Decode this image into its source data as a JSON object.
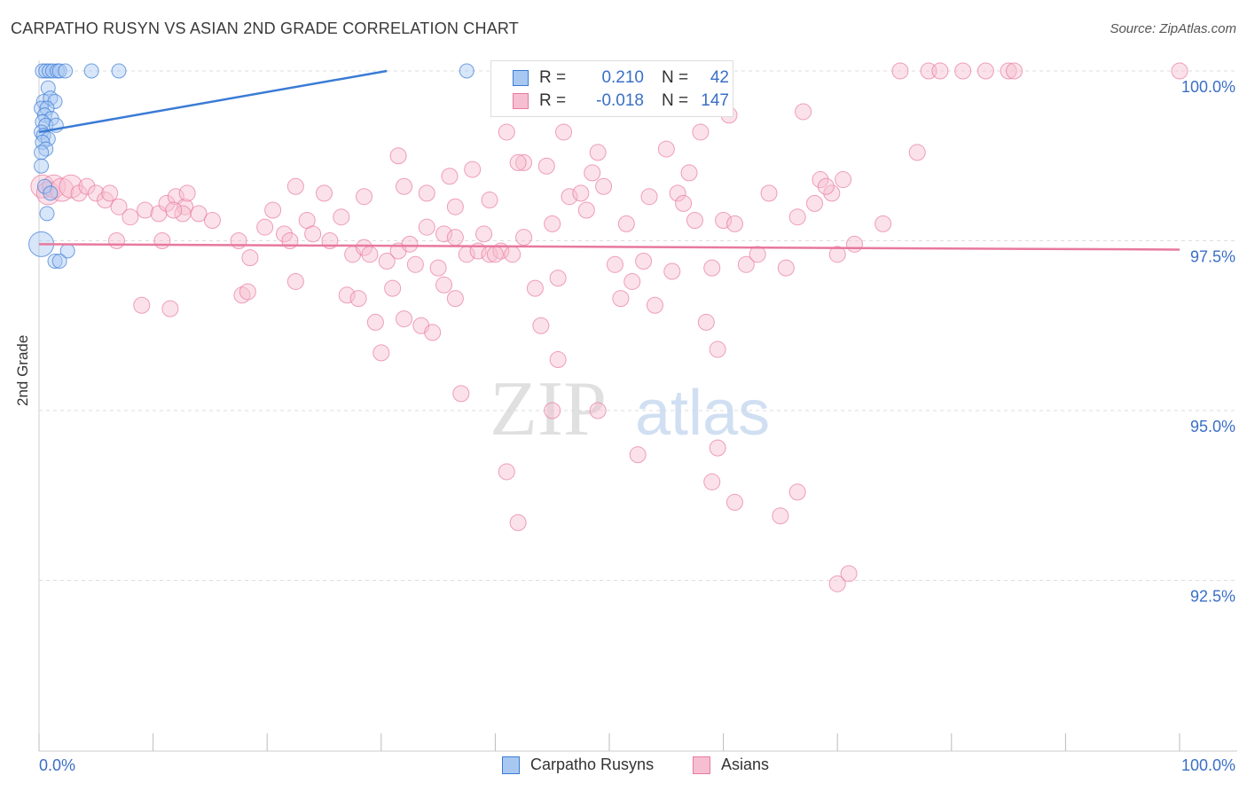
{
  "title": "CARPATHO RUSYN VS ASIAN 2ND GRADE CORRELATION CHART",
  "source": "Source: ZipAtlas.com",
  "watermark": {
    "zip": "ZIP",
    "atlas": "atlas"
  },
  "colors": {
    "blue": "#3a7bd5",
    "blue_fill": "#a9c8f1",
    "pink": "#e8799e",
    "pink_fill": "#f6bfd1",
    "grid": "#dddddd",
    "tick_text": "#3a6fc7"
  },
  "legend_top": {
    "rows": [
      {
        "r_label": "R =",
        "r_value": "0.210",
        "n_label": "N =",
        "n_value": "42"
      },
      {
        "r_label": "R =",
        "r_value": "-0.018",
        "n_label": "N =",
        "n_value": "147"
      }
    ]
  },
  "legend_bottom": [
    "Carpatho Rusyns",
    "Asians"
  ],
  "chart_data": {
    "type": "scatter",
    "title": "CARPATHO RUSYN VS ASIAN 2ND GRADE CORRELATION CHART",
    "xlabel": "",
    "ylabel": "2nd Grade",
    "xlim": [
      0,
      100
    ],
    "ylim": [
      90.2,
      100.4
    ],
    "x_tick_labels": [
      "0.0%",
      "100.0%"
    ],
    "y_ticks": [
      100.0,
      97.5,
      95.0,
      92.5
    ],
    "y_tick_labels": [
      "100.0%",
      "97.5%",
      "95.0%",
      "92.5%"
    ],
    "series": [
      {
        "name": "Carpatho Rusyns",
        "r": 0.21,
        "n": 42,
        "trend": {
          "x": [
            0,
            30.5
          ],
          "y": [
            99.1,
            100.0
          ]
        },
        "points": [
          {
            "x": 0.3,
            "y": 100.0
          },
          {
            "x": 0.6,
            "y": 100.0
          },
          {
            "x": 0.9,
            "y": 100.0
          },
          {
            "x": 1.2,
            "y": 100.0
          },
          {
            "x": 1.6,
            "y": 100.0
          },
          {
            "x": 1.8,
            "y": 100.0
          },
          {
            "x": 2.3,
            "y": 100.0
          },
          {
            "x": 4.6,
            "y": 100.0
          },
          {
            "x": 7.0,
            "y": 100.0
          },
          {
            "x": 37.5,
            "y": 100.0
          },
          {
            "x": 0.8,
            "y": 99.75
          },
          {
            "x": 0.4,
            "y": 99.55
          },
          {
            "x": 1.0,
            "y": 99.6
          },
          {
            "x": 1.4,
            "y": 99.55
          },
          {
            "x": 0.2,
            "y": 99.45
          },
          {
            "x": 0.7,
            "y": 99.45
          },
          {
            "x": 0.5,
            "y": 99.35
          },
          {
            "x": 1.1,
            "y": 99.3
          },
          {
            "x": 0.3,
            "y": 99.25
          },
          {
            "x": 0.6,
            "y": 99.2
          },
          {
            "x": 1.5,
            "y": 99.2
          },
          {
            "x": 0.2,
            "y": 99.1
          },
          {
            "x": 0.4,
            "y": 99.05
          },
          {
            "x": 0.8,
            "y": 99.0
          },
          {
            "x": 0.3,
            "y": 98.95
          },
          {
            "x": 0.6,
            "y": 98.85
          },
          {
            "x": 0.2,
            "y": 98.8
          },
          {
            "x": 0.2,
            "y": 98.6
          },
          {
            "x": 0.5,
            "y": 98.3
          },
          {
            "x": 1.0,
            "y": 98.2
          },
          {
            "x": 0.7,
            "y": 97.9
          },
          {
            "x": 0.2,
            "y": 97.45,
            "size": "large"
          },
          {
            "x": 2.5,
            "y": 97.35
          },
          {
            "x": 1.4,
            "y": 97.2
          },
          {
            "x": 1.8,
            "y": 97.2
          }
        ]
      },
      {
        "name": "Asians",
        "r": -0.018,
        "n": 147,
        "trend": {
          "x": [
            0,
            100
          ],
          "y": [
            97.45,
            97.37
          ]
        },
        "points": [
          {
            "x": 0.3,
            "y": 98.3,
            "size": "large"
          },
          {
            "x": 0.8,
            "y": 98.2,
            "size": "large"
          },
          {
            "x": 1.3,
            "y": 98.3,
            "size": "large"
          },
          {
            "x": 2.0,
            "y": 98.25,
            "size": "large"
          },
          {
            "x": 2.8,
            "y": 98.3,
            "size": "large"
          },
          {
            "x": 3.5,
            "y": 98.2
          },
          {
            "x": 4.2,
            "y": 98.3
          },
          {
            "x": 5.0,
            "y": 98.2
          },
          {
            "x": 5.8,
            "y": 98.1
          },
          {
            "x": 6.2,
            "y": 98.2
          },
          {
            "x": 7.0,
            "y": 98.0
          },
          {
            "x": 8.0,
            "y": 97.85
          },
          {
            "x": 9.3,
            "y": 97.95
          },
          {
            "x": 10.5,
            "y": 97.9
          },
          {
            "x": 11.2,
            "y": 98.05
          },
          {
            "x": 12.0,
            "y": 98.15
          },
          {
            "x": 12.8,
            "y": 98.0
          },
          {
            "x": 14.0,
            "y": 97.9
          },
          {
            "x": 15.2,
            "y": 97.8
          },
          {
            "x": 13.0,
            "y": 98.2
          },
          {
            "x": 6.8,
            "y": 97.5
          },
          {
            "x": 10.8,
            "y": 97.5
          },
          {
            "x": 12.6,
            "y": 97.9
          },
          {
            "x": 11.8,
            "y": 97.95
          },
          {
            "x": 17.5,
            "y": 97.5
          },
          {
            "x": 18.5,
            "y": 97.25
          },
          {
            "x": 19.8,
            "y": 97.7
          },
          {
            "x": 20.5,
            "y": 97.95
          },
          {
            "x": 21.5,
            "y": 97.6
          },
          {
            "x": 22.0,
            "y": 97.5
          },
          {
            "x": 23.5,
            "y": 97.8
          },
          {
            "x": 24.0,
            "y": 97.6
          },
          {
            "x": 25.5,
            "y": 97.5
          },
          {
            "x": 26.5,
            "y": 97.85
          },
          {
            "x": 27.5,
            "y": 97.3
          },
          {
            "x": 28.5,
            "y": 97.4
          },
          {
            "x": 29.0,
            "y": 97.3
          },
          {
            "x": 30.5,
            "y": 97.2
          },
          {
            "x": 31.5,
            "y": 97.35
          },
          {
            "x": 32.5,
            "y": 97.45
          },
          {
            "x": 33.0,
            "y": 97.15
          },
          {
            "x": 34.0,
            "y": 97.7
          },
          {
            "x": 35.0,
            "y": 97.1
          },
          {
            "x": 35.5,
            "y": 97.6
          },
          {
            "x": 36.5,
            "y": 97.55
          },
          {
            "x": 37.5,
            "y": 97.3
          },
          {
            "x": 38.5,
            "y": 97.35
          },
          {
            "x": 39.5,
            "y": 97.3
          },
          {
            "x": 40.5,
            "y": 97.35
          },
          {
            "x": 41.5,
            "y": 97.3
          },
          {
            "x": 9.0,
            "y": 96.55
          },
          {
            "x": 11.5,
            "y": 96.5
          },
          {
            "x": 17.8,
            "y": 96.7
          },
          {
            "x": 18.3,
            "y": 96.75
          },
          {
            "x": 22.5,
            "y": 96.9
          },
          {
            "x": 27.0,
            "y": 96.7
          },
          {
            "x": 28.0,
            "y": 96.65
          },
          {
            "x": 29.5,
            "y": 96.3
          },
          {
            "x": 30.0,
            "y": 95.85
          },
          {
            "x": 31.0,
            "y": 96.8
          },
          {
            "x": 32.0,
            "y": 96.35
          },
          {
            "x": 33.5,
            "y": 96.25
          },
          {
            "x": 34.5,
            "y": 96.15
          },
          {
            "x": 35.5,
            "y": 96.85
          },
          {
            "x": 36.5,
            "y": 96.65
          },
          {
            "x": 40.0,
            "y": 97.3
          },
          {
            "x": 42.5,
            "y": 97.55
          },
          {
            "x": 43.5,
            "y": 96.8
          },
          {
            "x": 44.0,
            "y": 96.25
          },
          {
            "x": 45.5,
            "y": 96.95
          },
          {
            "x": 46.5,
            "y": 98.15
          },
          {
            "x": 47.5,
            "y": 98.2
          },
          {
            "x": 48.5,
            "y": 98.5
          },
          {
            "x": 49.0,
            "y": 98.8
          },
          {
            "x": 50.5,
            "y": 97.15
          },
          {
            "x": 51.0,
            "y": 96.65
          },
          {
            "x": 52.0,
            "y": 96.9
          },
          {
            "x": 53.0,
            "y": 97.2
          },
          {
            "x": 54.0,
            "y": 96.55
          },
          {
            "x": 55.5,
            "y": 97.05
          },
          {
            "x": 56.0,
            "y": 98.2
          },
          {
            "x": 57.0,
            "y": 98.5
          },
          {
            "x": 58.5,
            "y": 96.3
          },
          {
            "x": 59.0,
            "y": 97.1
          },
          {
            "x": 60.0,
            "y": 97.8
          },
          {
            "x": 61.0,
            "y": 97.75
          },
          {
            "x": 62.0,
            "y": 97.15
          },
          {
            "x": 63.0,
            "y": 97.3
          },
          {
            "x": 64.0,
            "y": 98.2
          },
          {
            "x": 65.5,
            "y": 97.1
          },
          {
            "x": 66.5,
            "y": 97.85
          },
          {
            "x": 68.0,
            "y": 98.05
          },
          {
            "x": 69.5,
            "y": 98.2
          },
          {
            "x": 70.0,
            "y": 97.3
          },
          {
            "x": 71.5,
            "y": 97.45
          },
          {
            "x": 22.5,
            "y": 98.3
          },
          {
            "x": 25.0,
            "y": 98.2
          },
          {
            "x": 28.5,
            "y": 98.15
          },
          {
            "x": 31.5,
            "y": 98.75
          },
          {
            "x": 32.0,
            "y": 98.3
          },
          {
            "x": 34.0,
            "y": 98.2
          },
          {
            "x": 36.0,
            "y": 98.45
          },
          {
            "x": 38.0,
            "y": 98.55
          },
          {
            "x": 39.5,
            "y": 98.1
          },
          {
            "x": 41.0,
            "y": 99.1
          },
          {
            "x": 42.5,
            "y": 98.65
          },
          {
            "x": 44.5,
            "y": 98.6
          },
          {
            "x": 46.0,
            "y": 99.1
          },
          {
            "x": 49.5,
            "y": 98.3
          },
          {
            "x": 51.5,
            "y": 97.75
          },
          {
            "x": 53.5,
            "y": 98.15
          },
          {
            "x": 55.0,
            "y": 98.85
          },
          {
            "x": 56.5,
            "y": 98.05
          },
          {
            "x": 57.5,
            "y": 97.8
          },
          {
            "x": 58.0,
            "y": 99.1
          },
          {
            "x": 36.5,
            "y": 98.0
          },
          {
            "x": 39.0,
            "y": 97.6
          },
          {
            "x": 42.0,
            "y": 98.65
          },
          {
            "x": 45.0,
            "y": 97.75
          },
          {
            "x": 48.0,
            "y": 97.95
          },
          {
            "x": 60.5,
            "y": 99.35
          },
          {
            "x": 67.0,
            "y": 99.4
          },
          {
            "x": 68.5,
            "y": 98.4
          },
          {
            "x": 69.0,
            "y": 98.3
          },
          {
            "x": 70.5,
            "y": 98.4
          },
          {
            "x": 74.0,
            "y": 97.75
          },
          {
            "x": 77.0,
            "y": 98.8
          },
          {
            "x": 75.5,
            "y": 100.0
          },
          {
            "x": 78.0,
            "y": 100.0
          },
          {
            "x": 79.0,
            "y": 100.0
          },
          {
            "x": 81.0,
            "y": 100.0
          },
          {
            "x": 83.0,
            "y": 100.0
          },
          {
            "x": 85.0,
            "y": 100.0
          },
          {
            "x": 85.5,
            "y": 100.0
          },
          {
            "x": 100.0,
            "y": 100.0
          },
          {
            "x": 37.0,
            "y": 95.25
          },
          {
            "x": 45.0,
            "y": 95.0
          },
          {
            "x": 49.0,
            "y": 95.0
          },
          {
            "x": 52.5,
            "y": 94.35
          },
          {
            "x": 59.5,
            "y": 94.45
          },
          {
            "x": 41.0,
            "y": 94.1
          },
          {
            "x": 42.0,
            "y": 93.35
          },
          {
            "x": 59.0,
            "y": 93.95
          },
          {
            "x": 61.0,
            "y": 93.65
          },
          {
            "x": 65.0,
            "y": 93.45
          },
          {
            "x": 66.5,
            "y": 93.8
          },
          {
            "x": 70.0,
            "y": 92.45
          },
          {
            "x": 71.0,
            "y": 92.6
          },
          {
            "x": 45.5,
            "y": 95.75
          },
          {
            "x": 59.5,
            "y": 95.9
          }
        ]
      }
    ]
  }
}
